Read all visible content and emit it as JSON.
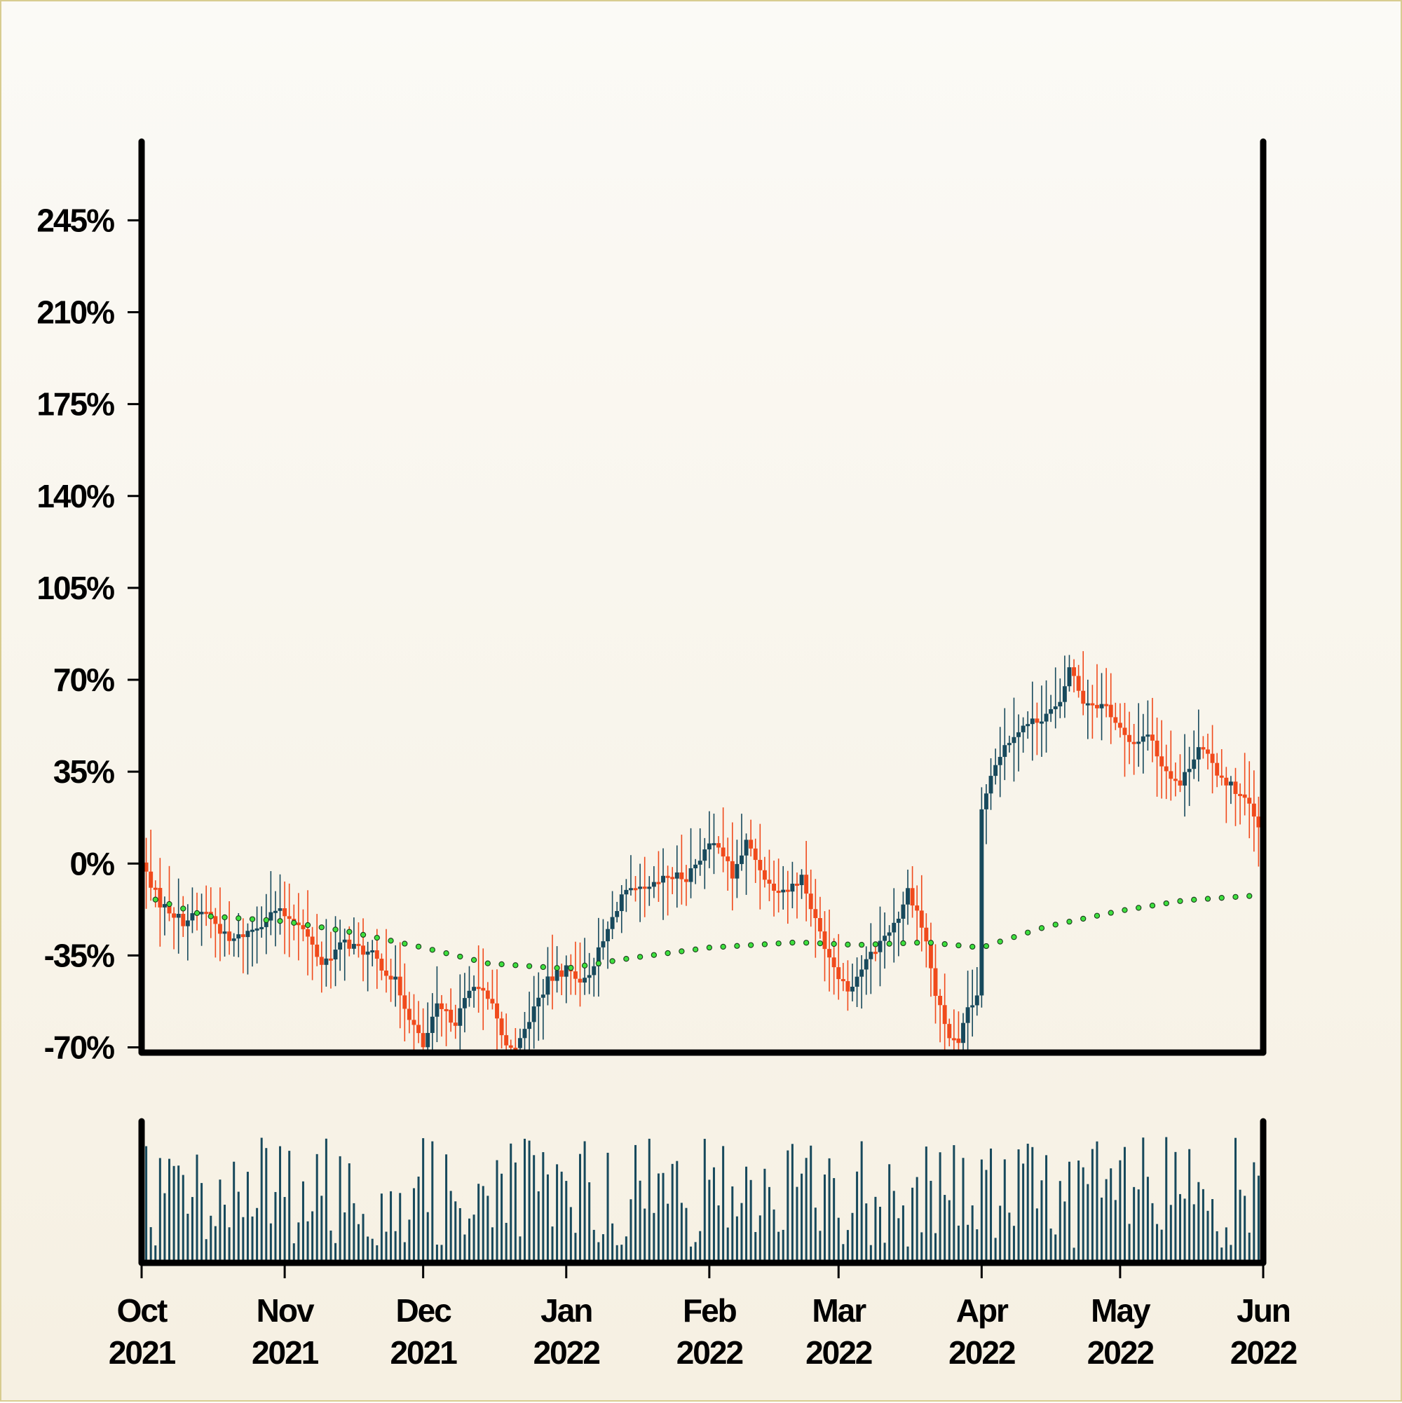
{
  "chart_data": {
    "type": "candlestick",
    "title": "",
    "xlabel": "",
    "ylabel": "",
    "x_range": [
      "2021-10-01",
      "2022-06-01"
    ],
    "ylim": [
      -72,
      275
    ],
    "y_ticks": [
      -70,
      -35,
      0,
      35,
      70,
      105,
      140,
      175,
      210,
      245
    ],
    "y_tick_labels": [
      "-70%",
      "-35%",
      "0%",
      "35%",
      "70%",
      "105%",
      "140%",
      "175%",
      "210%",
      "245%"
    ],
    "x_ticks": [
      {
        "date": "2021-10-01",
        "month": "Oct",
        "year": "2021"
      },
      {
        "date": "2021-11-01",
        "month": "Nov",
        "year": "2021"
      },
      {
        "date": "2021-12-01",
        "month": "Dec",
        "year": "2021"
      },
      {
        "date": "2022-01-01",
        "month": "Jan",
        "year": "2022"
      },
      {
        "date": "2022-02-01",
        "month": "Feb",
        "year": "2022"
      },
      {
        "date": "2022-03-01",
        "month": "Mar",
        "year": "2022"
      },
      {
        "date": "2022-04-01",
        "month": "Apr",
        "year": "2022"
      },
      {
        "date": "2022-05-01",
        "month": "May",
        "year": "2022"
      },
      {
        "date": "2022-06-01",
        "month": "Jun",
        "year": "2022"
      }
    ],
    "close_path": [
      [
        "2021-10-01",
        0
      ],
      [
        "2021-10-05",
        -15
      ],
      [
        "2021-10-10",
        -22
      ],
      [
        "2021-10-15",
        -18
      ],
      [
        "2021-10-20",
        -30
      ],
      [
        "2021-10-25",
        -25
      ],
      [
        "2021-10-30",
        -18
      ],
      [
        "2021-11-04",
        -22
      ],
      [
        "2021-11-09",
        -38
      ],
      [
        "2021-11-14",
        -30
      ],
      [
        "2021-11-20",
        -35
      ],
      [
        "2021-11-25",
        -45
      ],
      [
        "2021-11-28",
        -58
      ],
      [
        "2021-12-01",
        -70
      ],
      [
        "2021-12-04",
        -55
      ],
      [
        "2021-12-08",
        -60
      ],
      [
        "2021-12-12",
        -45
      ],
      [
        "2021-12-16",
        -55
      ],
      [
        "2021-12-19",
        -70
      ],
      [
        "2021-12-22",
        -68
      ],
      [
        "2021-12-25",
        -55
      ],
      [
        "2021-12-28",
        -45
      ],
      [
        "2022-01-01",
        -40
      ],
      [
        "2022-01-05",
        -45
      ],
      [
        "2022-01-09",
        -30
      ],
      [
        "2022-01-13",
        -12
      ],
      [
        "2022-01-19",
        -10
      ],
      [
        "2022-01-23",
        -5
      ],
      [
        "2022-01-27",
        -5
      ],
      [
        "2022-01-31",
        5
      ],
      [
        "2022-02-03",
        8
      ],
      [
        "2022-02-06",
        -5
      ],
      [
        "2022-02-09",
        8
      ],
      [
        "2022-02-14",
        -8
      ],
      [
        "2022-02-18",
        -10
      ],
      [
        "2022-02-21",
        -5
      ],
      [
        "2022-02-24",
        -22
      ],
      [
        "2022-02-27",
        -35
      ],
      [
        "2022-03-01",
        -42
      ],
      [
        "2022-03-03",
        -48
      ],
      [
        "2022-03-06",
        -40
      ],
      [
        "2022-03-10",
        -30
      ],
      [
        "2022-03-14",
        -20
      ],
      [
        "2022-03-16",
        -10
      ],
      [
        "2022-03-18",
        -18
      ],
      [
        "2022-03-20",
        -30
      ],
      [
        "2022-03-22",
        -50
      ],
      [
        "2022-03-25",
        -66
      ],
      [
        "2022-03-27",
        -70
      ],
      [
        "2022-03-29",
        -55
      ],
      [
        "2022-03-31",
        -52
      ],
      [
        "2022-04-01",
        20
      ],
      [
        "2022-04-03",
        35
      ],
      [
        "2022-04-05",
        42
      ],
      [
        "2022-04-08",
        50
      ],
      [
        "2022-04-13",
        55
      ],
      [
        "2022-04-18",
        60
      ],
      [
        "2022-04-20",
        75
      ],
      [
        "2022-04-23",
        62
      ],
      [
        "2022-04-28",
        60
      ],
      [
        "2022-05-03",
        45
      ],
      [
        "2022-05-07",
        50
      ],
      [
        "2022-05-10",
        38
      ],
      [
        "2022-05-14",
        30
      ],
      [
        "2022-05-18",
        45
      ],
      [
        "2022-05-22",
        35
      ],
      [
        "2022-05-26",
        28
      ],
      [
        "2022-05-29",
        22
      ],
      [
        "2022-06-01",
        8
      ]
    ],
    "moving_average_path": [
      [
        "2021-10-01",
        -12
      ],
      [
        "2021-10-15",
        -20
      ],
      [
        "2021-11-01",
        -22
      ],
      [
        "2021-11-15",
        -26
      ],
      [
        "2021-12-01",
        -32
      ],
      [
        "2021-12-15",
        -38
      ],
      [
        "2022-01-01",
        -40
      ],
      [
        "2022-01-15",
        -36
      ],
      [
        "2022-02-01",
        -32
      ],
      [
        "2022-02-20",
        -30
      ],
      [
        "2022-03-05",
        -31
      ],
      [
        "2022-03-20",
        -30
      ],
      [
        "2022-04-01",
        -32
      ],
      [
        "2022-04-15",
        -24
      ],
      [
        "2022-05-01",
        -18
      ],
      [
        "2022-05-15",
        -14
      ],
      [
        "2022-06-01",
        -12
      ]
    ],
    "volume": "daily bars, unlabeled scale",
    "colors": {
      "up": "#17495c",
      "down": "#f04a1c",
      "moving_average": "#3ee03e",
      "volume": "#17495c",
      "axis": "#000000"
    },
    "grid": false,
    "legend": "none"
  }
}
